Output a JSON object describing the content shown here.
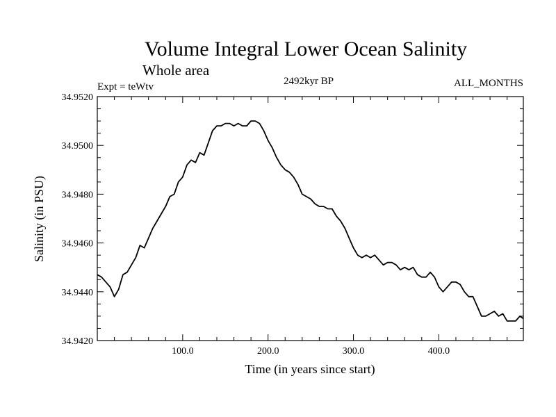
{
  "chart_data": {
    "type": "line",
    "title": "Volume Integral Lower Ocean Salinity",
    "subtitle": "Whole area",
    "annotation_left": "Expt = teWtv",
    "annotation_center": "2492kyr BP",
    "annotation_right": "ALL_MONTHS",
    "xlabel": "Time (in years since start)",
    "ylabel": "Salinity (in PSU)",
    "xlim": [
      0,
      499
    ],
    "ylim": [
      34.942,
      34.952
    ],
    "x_ticks": [
      100,
      200,
      300,
      400
    ],
    "x_tick_labels": [
      "100.0",
      "200.0",
      "300.0",
      "400.0"
    ],
    "y_ticks": [
      34.942,
      34.944,
      34.946,
      34.948,
      34.95,
      34.952
    ],
    "y_tick_labels": [
      "34.9420",
      "34.9440",
      "34.9460",
      "34.9480",
      "34.9500",
      "34.9520"
    ],
    "series": [
      {
        "name": "Salinity",
        "color": "#000000",
        "x": [
          0,
          5,
          10,
          15,
          20,
          25,
          30,
          35,
          40,
          45,
          50,
          55,
          60,
          65,
          70,
          75,
          80,
          85,
          90,
          95,
          100,
          105,
          110,
          115,
          120,
          125,
          130,
          135,
          140,
          145,
          150,
          155,
          160,
          165,
          170,
          175,
          180,
          185,
          190,
          195,
          200,
          205,
          210,
          215,
          220,
          225,
          230,
          235,
          240,
          245,
          250,
          255,
          260,
          265,
          270,
          275,
          280,
          285,
          290,
          295,
          300,
          305,
          310,
          315,
          320,
          325,
          330,
          335,
          340,
          345,
          350,
          355,
          360,
          365,
          370,
          375,
          380,
          385,
          390,
          395,
          400,
          405,
          410,
          415,
          420,
          425,
          430,
          435,
          440,
          445,
          450,
          455,
          460,
          465,
          470,
          475,
          480,
          485,
          490,
          495,
          499
        ],
        "values": [
          34.9447,
          34.9446,
          34.9444,
          34.9442,
          34.9438,
          34.9441,
          34.9447,
          34.9448,
          34.9451,
          34.9454,
          34.9459,
          34.9458,
          34.9462,
          34.9466,
          34.9469,
          34.9472,
          34.9475,
          34.9479,
          34.948,
          34.9485,
          34.9487,
          34.9492,
          34.9494,
          34.9493,
          34.9497,
          34.9496,
          34.9501,
          34.9506,
          34.9508,
          34.9508,
          34.9509,
          34.9509,
          34.9508,
          34.9509,
          34.9508,
          34.9508,
          34.951,
          34.951,
          34.9509,
          34.9506,
          34.9502,
          34.9499,
          34.9495,
          34.9492,
          34.949,
          34.9489,
          34.9487,
          34.9484,
          34.948,
          34.9479,
          34.9478,
          34.9476,
          34.9475,
          34.9475,
          34.9474,
          34.9474,
          34.9471,
          34.9469,
          34.9466,
          34.9462,
          34.9458,
          34.9455,
          34.9454,
          34.9455,
          34.9454,
          34.9455,
          34.9453,
          34.9451,
          34.9452,
          34.9452,
          34.9451,
          34.9449,
          34.945,
          34.9449,
          34.945,
          34.9447,
          34.9446,
          34.9446,
          34.9448,
          34.9446,
          34.9442,
          34.944,
          34.9442,
          34.9444,
          34.9444,
          34.9443,
          34.944,
          34.9438,
          34.9438,
          34.9434,
          34.943,
          34.943,
          34.9431,
          34.9432,
          34.943,
          34.9431,
          34.9428,
          34.9428,
          34.9428,
          34.943,
          34.9429
        ]
      }
    ]
  }
}
